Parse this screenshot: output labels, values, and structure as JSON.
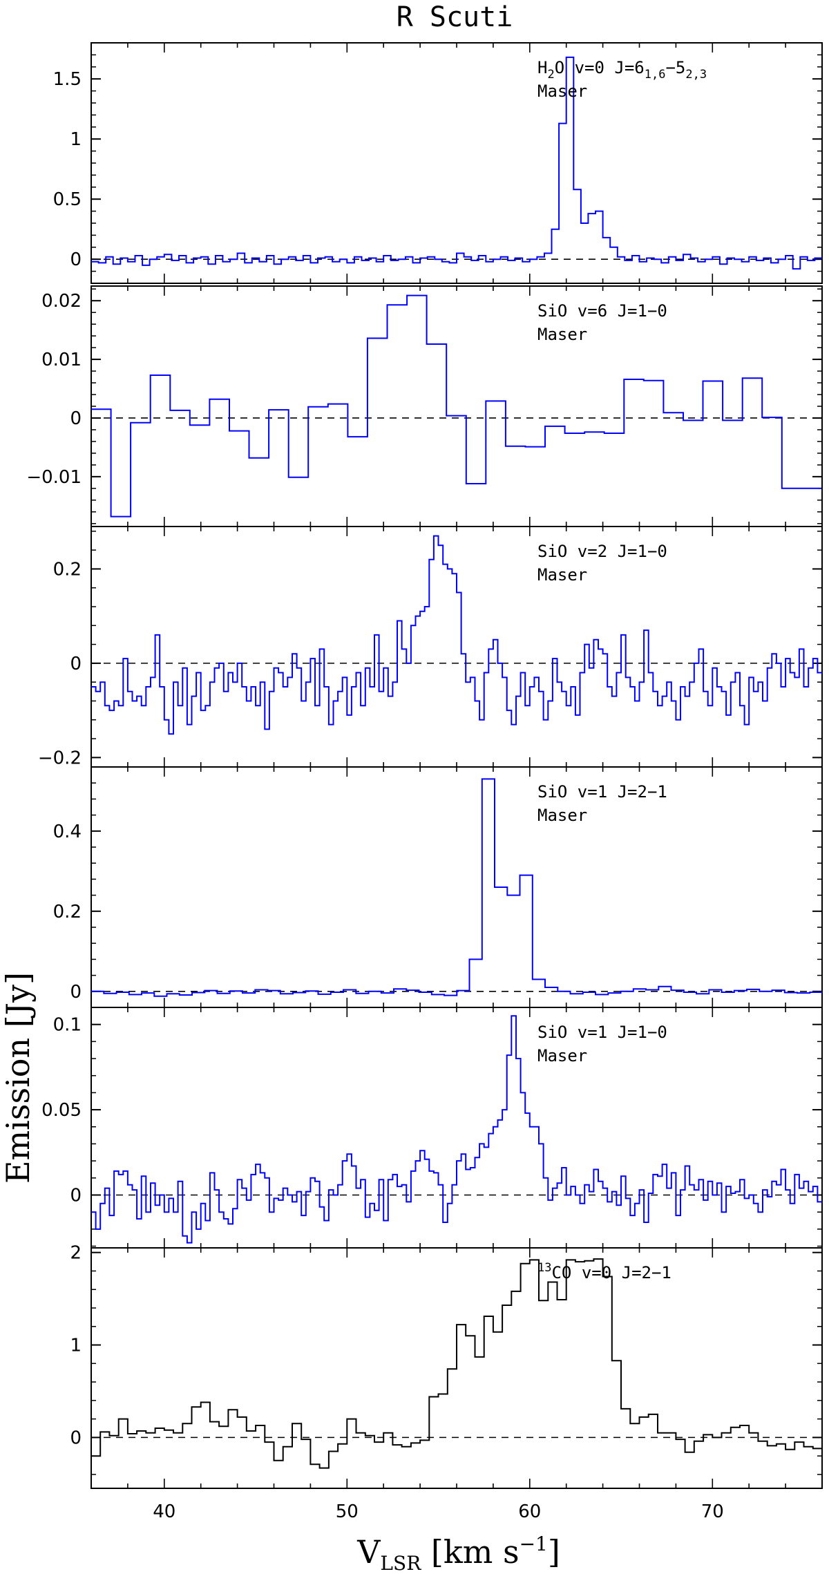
{
  "title": "R Scuti",
  "ylabel": "Emission [Jy]",
  "xlabel": "V_LSR [km s^-1]",
  "xlim": [
    36,
    76
  ],
  "xticks": [
    40,
    50,
    60,
    70
  ],
  "chart_data": [
    {
      "type": "line",
      "label_line1": "H2O v=0 J=6_1,6-5_2,3",
      "label_line2": "Maser",
      "color": "#0000ff",
      "ylim": [
        -0.2,
        1.8
      ],
      "yticks": [
        0,
        0.5,
        1,
        1.5
      ],
      "ytick_labels": [
        "0",
        "0.5",
        "1",
        "1.5"
      ],
      "x0": 36,
      "dx": 0.4,
      "values": [
        -0.02,
        -0.03,
        0.02,
        -0.04,
        0.01,
        -0.02,
        0.03,
        -0.05,
        0.0,
        0.02,
        0.04,
        -0.01,
        0.03,
        -0.03,
        0.01,
        0.02,
        -0.04,
        0.03,
        -0.02,
        0.0,
        0.05,
        -0.03,
        0.01,
        -0.02,
        0.03,
        -0.04,
        0.0,
        0.02,
        -0.01,
        0.03,
        -0.03,
        0.01,
        0.02,
        -0.02,
        0.0,
        -0.03,
        0.02,
        -0.01,
        0.01,
        -0.02,
        0.03,
        -0.01,
        0.0,
        0.02,
        -0.03,
        0.01,
        0.02,
        0.0,
        -0.02,
        -0.03,
        0.05,
        0.02,
        -0.01,
        0.03,
        -0.02,
        0.0,
        0.02,
        -0.01,
        0.01,
        -0.02,
        0.0,
        0.02,
        0.05,
        0.25,
        1.13,
        1.68,
        0.58,
        0.3,
        0.38,
        0.4,
        0.18,
        0.1,
        0.02,
        -0.01,
        0.03,
        -0.02,
        0.01,
        0.0,
        -0.03,
        0.02,
        -0.01,
        0.04,
        0.01,
        -0.02,
        0.0,
        0.02,
        -0.04,
        0.01,
        0.0,
        -0.02,
        0.02,
        -0.01,
        0.01,
        -0.03,
        0.0,
        0.03,
        -0.08,
        0.02,
        -0.01,
        0.01
      ]
    },
    {
      "type": "line",
      "label_line1": "SiO v=6 J=1-0",
      "label_line2": "Maser",
      "color": "#0000ff",
      "ylim": [
        -0.0185,
        0.0225
      ],
      "yticks": [
        -0.01,
        0,
        0.01,
        0.02
      ],
      "ytick_labels": [
        "-0.01",
        "0",
        "0.01",
        "0.02"
      ],
      "x0": 36,
      "dx": 1.08,
      "values": [
        0.0015,
        -0.0168,
        -0.0008,
        0.0073,
        0.0013,
        -0.0012,
        0.0032,
        -0.0022,
        -0.0068,
        0.0014,
        -0.0101,
        0.0019,
        0.0024,
        -0.0032,
        0.0136,
        0.0193,
        0.0209,
        0.0126,
        0.0004,
        -0.0112,
        0.0029,
        -0.0048,
        -0.0049,
        -0.0014,
        -0.0026,
        -0.0024,
        -0.0026,
        0.0066,
        0.0064,
        0.0009,
        -0.0004,
        0.0063,
        -0.0004,
        0.0068,
        0.0001,
        -0.012,
        -0.012
      ]
    },
    {
      "type": "line",
      "label_line1": "SiO v=2 J=1-0",
      "label_line2": "Maser",
      "color": "#0000ff",
      "ylim": [
        -0.22,
        0.29
      ],
      "yticks": [
        -0.2,
        0,
        0.2
      ],
      "ytick_labels": [
        "-0.2",
        "0",
        "0.2"
      ],
      "x0": 36,
      "dx": 0.25,
      "values": [
        -0.05,
        -0.06,
        -0.04,
        -0.09,
        -0.1,
        -0.08,
        -0.09,
        0.01,
        -0.06,
        -0.08,
        -0.07,
        -0.09,
        -0.05,
        -0.03,
        0.06,
        -0.05,
        -0.12,
        -0.15,
        -0.04,
        -0.09,
        -0.01,
        -0.13,
        -0.07,
        -0.02,
        -0.1,
        -0.09,
        -0.04,
        -0.01,
        0.0,
        -0.06,
        -0.02,
        -0.04,
        0.0,
        -0.05,
        -0.08,
        -0.05,
        -0.09,
        -0.04,
        -0.14,
        -0.06,
        -0.01,
        -0.02,
        -0.05,
        -0.03,
        0.02,
        -0.01,
        -0.08,
        -0.04,
        0.01,
        -0.09,
        0.03,
        -0.05,
        -0.13,
        -0.08,
        -0.06,
        -0.03,
        -0.11,
        -0.05,
        -0.02,
        -0.09,
        -0.01,
        -0.05,
        0.06,
        -0.06,
        -0.01,
        -0.07,
        -0.04,
        0.09,
        0.03,
        0.0,
        0.08,
        0.1,
        0.11,
        0.12,
        0.22,
        0.27,
        0.25,
        0.21,
        0.2,
        0.19,
        0.15,
        0.02,
        -0.04,
        -0.03,
        -0.08,
        -0.12,
        -0.02,
        0.03,
        0.05,
        0.0,
        -0.03,
        -0.1,
        -0.13,
        -0.07,
        -0.02,
        -0.09,
        -0.05,
        -0.03,
        -0.06,
        -0.12,
        -0.08,
        0.01,
        -0.04,
        -0.06,
        -0.09,
        -0.05,
        -0.11,
        -0.02,
        0.04,
        -0.01,
        0.05,
        0.03,
        0.02,
        -0.05,
        -0.07,
        -0.02,
        0.06,
        -0.03,
        -0.05,
        -0.08,
        -0.04,
        0.07,
        -0.02,
        -0.06,
        -0.09,
        -0.07,
        -0.04,
        -0.08,
        -0.12,
        -0.05,
        -0.07,
        -0.04,
        0.0,
        0.03,
        -0.06,
        -0.09,
        -0.01,
        -0.05,
        -0.06,
        -0.11,
        -0.04,
        -0.02,
        -0.09,
        -0.13,
        -0.03,
        -0.06,
        -0.04,
        -0.08,
        -0.01,
        0.02,
        0.0,
        -0.05,
        0.01,
        -0.02,
        -0.03,
        0.03,
        -0.05,
        -0.01,
        0.01,
        -0.02,
        0.01
      ]
    },
    {
      "type": "line",
      "label_line1": "SiO v=1 J=2-1",
      "label_line2": "Maser",
      "color": "#0000ff",
      "ylim": [
        -0.04,
        0.56
      ],
      "yticks": [
        0,
        0.2,
        0.4
      ],
      "ytick_labels": [
        "0",
        "0.2",
        "0.4"
      ],
      "x0": 36,
      "dx": 0.69,
      "values": [
        0.0,
        -0.005,
        -0.002,
        -0.008,
        -0.004,
        -0.012,
        -0.006,
        -0.009,
        -0.003,
        0.002,
        -0.005,
        0.001,
        -0.004,
        0.004,
        0.002,
        -0.006,
        -0.003,
        0.001,
        -0.007,
        -0.002,
        0.004,
        -0.005,
        0.0,
        -0.004,
        0.006,
        0.003,
        -0.002,
        -0.008,
        -0.01,
        0.002,
        0.08,
        0.53,
        0.26,
        0.24,
        0.29,
        0.03,
        0.01,
        0.0,
        -0.006,
        -0.002,
        -0.008,
        -0.004,
        0.0,
        0.006,
        0.004,
        0.012,
        0.003,
        -0.002,
        -0.006,
        0.004,
        -0.002,
        0.002,
        0.005,
        0.0,
        0.003,
        -0.003,
        -0.004,
        -0.002,
        0.0
      ]
    },
    {
      "type": "line",
      "label_line1": "SiO v=1 J=1-0",
      "label_line2": "Maser",
      "color": "#0000ff",
      "ylim": [
        -0.031,
        0.11
      ],
      "yticks": [
        0,
        0.05,
        0.1
      ],
      "ytick_labels": [
        "0",
        "0.05",
        "0.1"
      ],
      "x0": 36,
      "dx": 0.25,
      "values": [
        -0.01,
        -0.02,
        -0.005,
        0.004,
        -0.012,
        0.014,
        0.012,
        0.014,
        0.006,
        0.003,
        -0.014,
        0.011,
        -0.01,
        0.007,
        -0.006,
        0.0,
        -0.01,
        -0.002,
        -0.01,
        0.008,
        -0.024,
        -0.028,
        -0.01,
        -0.02,
        -0.005,
        -0.015,
        0.013,
        0.003,
        -0.01,
        -0.014,
        -0.017,
        -0.008,
        0.009,
        0.004,
        -0.003,
        0.012,
        0.018,
        0.013,
        0.01,
        -0.01,
        -0.002,
        -0.003,
        0.004,
        0.0,
        -0.004,
        0.002,
        -0.012,
        0.002,
        0.01,
        0.008,
        -0.007,
        -0.015,
        0.003,
        0.0,
        0.006,
        0.02,
        0.024,
        0.017,
        0.004,
        0.009,
        -0.013,
        -0.005,
        -0.009,
        0.009,
        -0.015,
        0.009,
        0.012,
        0.005,
        0.006,
        -0.004,
        0.014,
        0.02,
        0.026,
        0.021,
        0.014,
        0.013,
        0.006,
        -0.016,
        -0.005,
        0.006,
        0.02,
        0.024,
        0.015,
        0.016,
        0.022,
        0.03,
        0.028,
        0.036,
        0.04,
        0.044,
        0.05,
        0.082,
        0.105,
        0.08,
        0.06,
        0.048,
        0.04,
        0.04,
        0.03,
        0.01,
        -0.003,
        0.004,
        0.007,
        0.016,
        0.0,
        0.005,
        0.0,
        -0.005,
        0.006,
        0.002,
        0.015,
        0.008,
        0.004,
        -0.004,
        0.002,
        -0.006,
        0.011,
        -0.002,
        -0.012,
        -0.005,
        0.003,
        -0.016,
        0.001,
        0.012,
        0.011,
        0.018,
        0.004,
        0.013,
        -0.012,
        0.003,
        0.017,
        0.006,
        0.003,
        0.009,
        -0.003,
        0.008,
        0.0,
        0.007,
        -0.01,
        0.005,
        0.001,
        0.002,
        0.009,
        -0.002,
        0.0,
        -0.005,
        -0.01,
        0.003,
        -0.001,
        0.008,
        0.006,
        0.015,
        0.003,
        -0.005,
        0.012,
        0.004,
        0.008,
        0.002,
        0.005,
        -0.004,
        -0.011,
        0.006,
        0.003,
        -0.004,
        0.006,
        -0.007,
        0.003,
        0.007,
        -0.004,
        -0.005,
        0.006,
        0.011,
        0.003,
        0.001,
        -0.002,
        0.008,
        0.003,
        -0.005,
        0.008,
        0.003,
        -0.002,
        0.006,
        -0.004,
        0.002,
        -0.002,
        0.0
      ]
    },
    {
      "type": "line",
      "label_line1": "13CO v=0 J=2-1",
      "label_line2": "",
      "color": "#000000",
      "ylim": [
        -0.55,
        2.05
      ],
      "yticks": [
        0,
        1,
        2
      ],
      "ytick_labels": [
        "0",
        "1",
        "2"
      ],
      "x0": 36,
      "dx": 0.5,
      "values": [
        -0.2,
        0.06,
        0.02,
        0.2,
        0.04,
        0.07,
        0.05,
        0.1,
        0.08,
        0.05,
        0.15,
        0.33,
        0.38,
        0.17,
        0.12,
        0.3,
        0.22,
        0.07,
        0.13,
        -0.05,
        -0.25,
        -0.1,
        0.15,
        -0.02,
        -0.29,
        -0.33,
        -0.15,
        -0.07,
        0.2,
        0.05,
        0.02,
        -0.05,
        0.05,
        -0.08,
        -0.1,
        -0.06,
        -0.03,
        0.44,
        0.47,
        0.74,
        1.22,
        1.1,
        0.87,
        1.31,
        1.14,
        1.43,
        1.58,
        1.88,
        1.92,
        1.48,
        1.68,
        1.49,
        1.92,
        1.9,
        1.91,
        1.93,
        1.74,
        0.83,
        0.31,
        0.15,
        0.22,
        0.25,
        0.05,
        0.05,
        -0.02,
        -0.16,
        -0.04,
        0.03,
        0.0,
        0.05,
        0.11,
        0.13,
        0.05,
        -0.04,
        -0.09,
        -0.07,
        -0.13,
        -0.05,
        -0.1,
        -0.12,
        -0.03,
        -0.08,
        0.15,
        0.07,
        -0.05,
        0.08,
        0.04,
        0.1,
        0.16,
        0.08,
        0.2,
        -0.05,
        -0.2
      ]
    }
  ]
}
